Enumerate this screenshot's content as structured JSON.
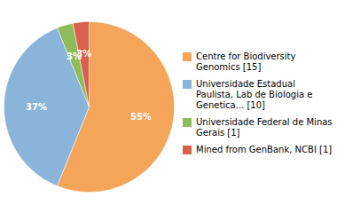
{
  "chart_data": {
    "type": "pie",
    "categories": [
      "Centre for Biodiversity\nGenomics [15]",
      "Universidade Estadual\nPaulista, Lab de Biologia e\nGenetica... [10]",
      "Universidade Federal de Minas\nGerais [1]",
      "Mined from GenBank, NCBI [1]"
    ],
    "values": [
      55,
      37,
      3,
      3
    ],
    "value_labels": [
      "55%",
      "37%",
      "3%",
      "3%"
    ],
    "colors": [
      "#f5a55a",
      "#8ab4d9",
      "#8fbc5a",
      "#d9614c"
    ],
    "data_labels": true,
    "legend": "right"
  }
}
